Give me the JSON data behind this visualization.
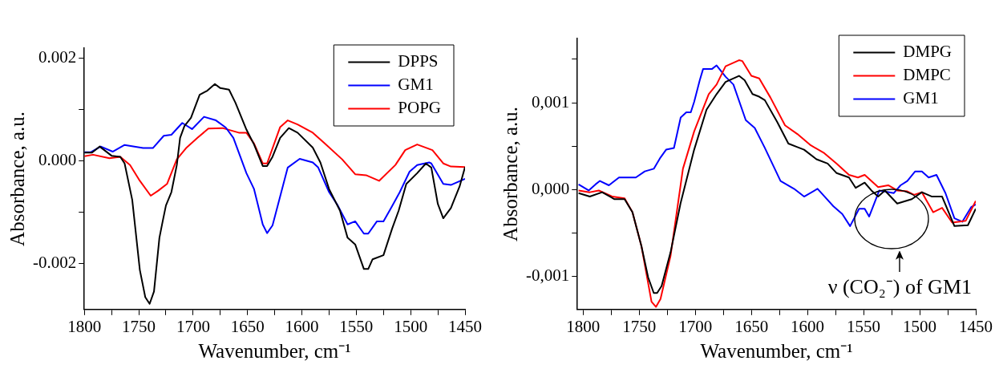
{
  "chart_data": [
    {
      "type": "line",
      "xlabel": "Wavenumber, cm⁻¹",
      "ylabel": "Absorbance, a.u.",
      "legend": "top right",
      "xlim": [
        1800,
        1450
      ],
      "ylim": [
        -0.0029,
        0.0022
      ],
      "xticks": [
        1800,
        {
          "value": 1775,
          "label": null
        },
        1750,
        {
          "value": 1725,
          "label": null
        },
        1700,
        {
          "value": 1675,
          "label": null
        },
        1650,
        {
          "value": 1625,
          "label": null
        },
        1600,
        {
          "value": 1575,
          "label": null
        },
        1550,
        {
          "value": 1525,
          "label": null
        },
        1500,
        {
          "value": 1475,
          "label": null
        },
        1450
      ],
      "yticks": [
        {
          "value": -0.002,
          "label": "-0.002"
        },
        {
          "value": -0.001,
          "label": null
        },
        {
          "value": 0,
          "label": "0.000"
        },
        {
          "value": 0.001,
          "label": null
        },
        {
          "value": 0.002,
          "label": "0.002"
        }
      ],
      "series": [
        {
          "name": "DPPS",
          "color": "#000000",
          "x": [
            1800,
            1793,
            1786,
            1775,
            1767,
            1763,
            1756,
            1749,
            1744,
            1740,
            1736,
            1731,
            1728,
            1725,
            1720,
            1715,
            1712,
            1708,
            1702,
            1694,
            1687,
            1680,
            1675,
            1667,
            1661,
            1651,
            1644,
            1636,
            1632,
            1627,
            1620,
            1612,
            1604,
            1590,
            1583,
            1575,
            1565,
            1558,
            1551,
            1543,
            1539,
            1535,
            1525,
            1517,
            1511,
            1504,
            1494,
            1486,
            1481,
            1475,
            1470,
            1463,
            1455,
            1450
          ],
          "values": [
            0.00016,
            0.00016,
            0.00028,
            0.0001,
            8e-05,
            -5e-05,
            -0.00076,
            -0.00213,
            -0.00266,
            -0.00279,
            -0.00255,
            -0.0015,
            -0.00118,
            -0.00087,
            -0.00061,
            -8e-05,
            0.00045,
            0.00068,
            0.00084,
            0.00129,
            0.00137,
            0.0015,
            0.00142,
            0.00139,
            0.00113,
            0.00061,
            0.00032,
            -0.0001,
            -0.0001,
            8e-05,
            0.00045,
            0.00064,
            0.00055,
            0.00026,
            -3e-05,
            -0.00055,
            -0.00097,
            -0.0015,
            -0.00163,
            -0.00211,
            -0.00211,
            -0.00192,
            -0.00184,
            -0.00132,
            -0.00097,
            -0.00045,
            -0.00024,
            -5e-05,
            -0.00013,
            -0.00084,
            -0.00112,
            -0.00092,
            -0.0005,
            -0.00012
          ]
        },
        {
          "name": "GM1",
          "color": "#0000ff",
          "x": [
            1800,
            1794,
            1785,
            1774,
            1763,
            1754,
            1746,
            1737,
            1727,
            1720,
            1710,
            1701,
            1690,
            1679,
            1670,
            1663,
            1651,
            1644,
            1636,
            1632,
            1627,
            1613,
            1602,
            1590,
            1585,
            1575,
            1567,
            1558,
            1551,
            1543,
            1539,
            1531,
            1525,
            1518,
            1510,
            1501,
            1494,
            1483,
            1481,
            1470,
            1463,
            1450
          ],
          "values": [
            0.00017,
            0.00017,
            0.00028,
            0.00018,
            0.00031,
            0.00028,
            0.00025,
            0.00025,
            0.00049,
            0.00051,
            0.00074,
            0.00062,
            0.00086,
            0.00079,
            0.00065,
            0.00045,
            -0.00024,
            -0.00055,
            -0.00124,
            -0.00141,
            -0.00126,
            -0.00013,
            4e-05,
            -3e-05,
            -0.00013,
            -0.00061,
            -0.00087,
            -0.00124,
            -0.00118,
            -0.00142,
            -0.00142,
            -0.00118,
            -0.00118,
            -0.00092,
            -0.00061,
            -0.00021,
            -8e-05,
            -3e-05,
            -5e-05,
            -0.00045,
            -0.00047,
            -0.00035
          ]
        },
        {
          "name": "POPG",
          "color": "#ff0000",
          "x": [
            1800,
            1792,
            1777,
            1767,
            1758,
            1749,
            1739,
            1732,
            1724,
            1715,
            1706,
            1696,
            1686,
            1673,
            1658,
            1651,
            1644,
            1636,
            1632,
            1620,
            1613,
            1604,
            1590,
            1579,
            1563,
            1551,
            1541,
            1529,
            1514,
            1505,
            1494,
            1480,
            1470,
            1463,
            1450
          ],
          "values": [
            9e-05,
            0.00012,
            5e-05,
            8e-05,
            -8e-05,
            -0.00039,
            -0.00068,
            -0.00058,
            -0.00045,
            3e-05,
            0.00026,
            0.00045,
            0.00063,
            0.00064,
            0.00055,
            0.00055,
            0.00034,
            -5e-05,
            -5e-05,
            0.00066,
            0.00079,
            0.00071,
            0.00055,
            0.00034,
            3e-05,
            -0.00026,
            -0.00028,
            -0.00039,
            -8e-05,
            0.00021,
            0.00032,
            0.00021,
            -5e-05,
            -0.00011,
            -0.00012
          ]
        }
      ]
    },
    {
      "type": "line",
      "xlabel": "Wavenumber, cm⁻¹",
      "ylabel": "Absorbance, a.u.",
      "legend": "top right",
      "xlim": [
        1805,
        1450
      ],
      "ylim": [
        -0.00138,
        0.00174
      ],
      "xticks": [
        1800,
        {
          "value": 1775,
          "label": null
        },
        1750,
        {
          "value": 1725,
          "label": null
        },
        1700,
        {
          "value": 1675,
          "label": null
        },
        1650,
        {
          "value": 1625,
          "label": null
        },
        1600,
        {
          "value": 1575,
          "label": null
        },
        1550,
        {
          "value": 1525,
          "label": null
        },
        1500,
        {
          "value": 1475,
          "label": null
        },
        1450
      ],
      "yticks": [
        {
          "value": -0.001,
          "label": "-0,001"
        },
        {
          "value": -0.0005,
          "label": null
        },
        {
          "value": 0,
          "label": "0,000"
        },
        {
          "value": 0.0005,
          "label": null
        },
        {
          "value": 0.001,
          "label": "0,001"
        },
        {
          "value": 0.0015,
          "label": null
        }
      ],
      "annotations": [
        "ν (CO₂⁻) of GM1"
      ],
      "series": [
        {
          "name": "DMPG",
          "color": "#000000",
          "x": [
            1804,
            1794,
            1783,
            1772,
            1763,
            1756,
            1748,
            1742,
            1737,
            1734,
            1730,
            1722,
            1713,
            1701,
            1690,
            1681,
            1673,
            1661,
            1656,
            1649,
            1643,
            1638,
            1627,
            1617,
            1609,
            1603,
            1592,
            1582,
            1574,
            1563,
            1557,
            1549,
            1543,
            1537,
            1531,
            1520,
            1507,
            1498,
            1489,
            1480,
            1469,
            1457,
            1450
          ],
          "values": [
            -4e-05,
            -8e-05,
            -3e-05,
            -0.00011,
            -0.00011,
            -0.00026,
            -0.00065,
            -0.00101,
            -0.00119,
            -0.00119,
            -0.00111,
            -0.00072,
            -0.00015,
            0.00046,
            0.00092,
            0.0011,
            0.00124,
            0.00131,
            0.00126,
            0.0011,
            0.00107,
            0.00103,
            0.00078,
            0.00053,
            0.00049,
            0.00046,
            0.00035,
            0.0003,
            0.00019,
            0.00014,
            2e-05,
            8e-05,
            -1e-05,
            -8e-05,
            -1e-05,
            -0.00016,
            -0.00011,
            -3e-05,
            -8e-05,
            -8e-05,
            -0.00042,
            -0.00041,
            -0.00022
          ]
        },
        {
          "name": "DMPC",
          "color": "#ff0000",
          "x": [
            1804,
            1794,
            1786,
            1774,
            1763,
            1756,
            1748,
            1739,
            1735,
            1731,
            1722,
            1711,
            1701,
            1688,
            1681,
            1673,
            1661,
            1658,
            1650,
            1643,
            1633,
            1620,
            1609,
            1597,
            1585,
            1574,
            1563,
            1555,
            1549,
            1537,
            1528,
            1520,
            1511,
            1505,
            1498,
            1488,
            1480,
            1471,
            1459,
            1450
          ],
          "values": [
            -1e-05,
            -3e-05,
            -1e-05,
            -8e-05,
            -0.0001,
            -0.00026,
            -0.00065,
            -0.00129,
            -0.00135,
            -0.00126,
            -0.00076,
            0.00024,
            0.00067,
            0.0011,
            0.00121,
            0.00142,
            0.00149,
            0.00148,
            0.00131,
            0.00128,
            0.00106,
            0.00074,
            0.00064,
            0.00051,
            0.00042,
            0.0003,
            0.00017,
            0.00014,
            0.00017,
            3e-05,
            5e-05,
            -1e-05,
            -2e-05,
            -6e-05,
            -3e-05,
            -0.00026,
            -0.00021,
            -0.00038,
            -0.00036,
            -0.00013
          ]
        },
        {
          "name": "GM1",
          "color": "#0000ff",
          "x": [
            1804,
            1795,
            1789,
            1785,
            1777,
            1768,
            1753,
            1745,
            1737,
            1731,
            1726,
            1719,
            1713,
            1708,
            1704,
            1701,
            1696,
            1693,
            1685,
            1681,
            1673,
            1666,
            1655,
            1647,
            1638,
            1624,
            1612,
            1603,
            1591,
            1577,
            1569,
            1562,
            1554,
            1549,
            1545,
            1536,
            1523,
            1517,
            1511,
            1504,
            1498,
            1492,
            1485,
            1477,
            1469,
            1462,
            1454,
            1450
          ],
          "values": [
            6e-05,
            -1e-05,
            6e-05,
            0.0001,
            5e-05,
            0.00014,
            0.00014,
            0.00021,
            0.00024,
            0.00037,
            0.00046,
            0.00048,
            0.00083,
            0.00089,
            0.00089,
            0.00101,
            0.00126,
            0.00139,
            0.00139,
            0.00143,
            0.0013,
            0.00121,
            0.0008,
            0.00071,
            0.00048,
            0.0001,
            1e-05,
            -8e-05,
            1e-05,
            -0.00019,
            -0.00028,
            -0.00042,
            -0.00022,
            -0.00022,
            -0.00031,
            -1e-05,
            -4e-05,
            5e-05,
            0.0001,
            0.00021,
            0.00021,
            0.00014,
            0.00017,
            -4e-05,
            -0.00033,
            -0.00037,
            -0.0002,
            -0.00017
          ]
        }
      ]
    }
  ]
}
